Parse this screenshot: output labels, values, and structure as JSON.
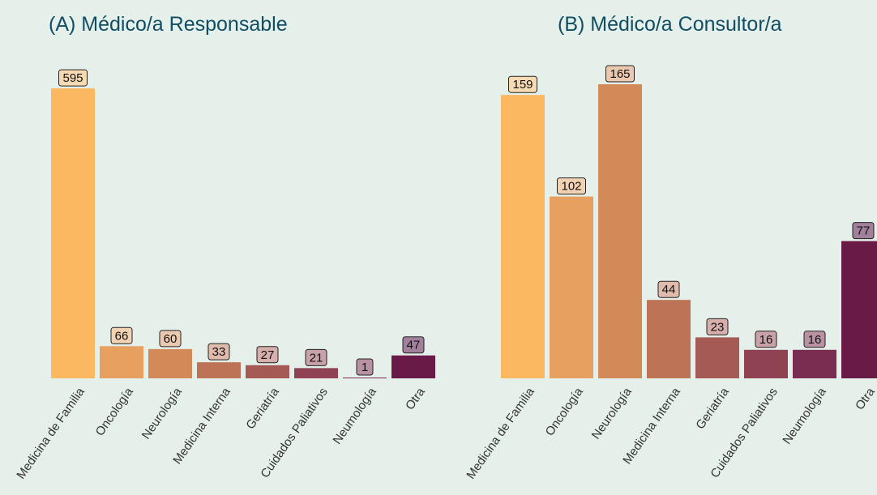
{
  "chart_data": [
    {
      "type": "bar",
      "title": "(A) Médico/a Responsable",
      "categories": [
        "Medicina de Familia",
        "Oncología",
        "Neurología",
        "Medicina Interna",
        "Geriatría",
        "Cuidados Paliativos",
        "Neumología",
        "Otra"
      ],
      "values": [
        595,
        66,
        60,
        33,
        27,
        21,
        1,
        47
      ],
      "ylim": [
        0,
        640
      ],
      "grid": false,
      "data_labels": true
    },
    {
      "type": "bar",
      "title": "(B) Médico/a Consultor/a",
      "categories": [
        "Medicina de Familia",
        "Oncología",
        "Neurología",
        "Medicina Interna",
        "Geriatría",
        "Cuidados Paliativos",
        "Neumología",
        "Otra"
      ],
      "values": [
        159,
        102,
        165,
        44,
        23,
        16,
        16,
        77
      ],
      "ylim": [
        0,
        175
      ],
      "grid": false,
      "data_labels": true
    }
  ],
  "colors": {
    "background": "#e6f0ea",
    "title": "#114d64",
    "bars": [
      "#fbb860",
      "#e7a060",
      "#d28a58",
      "#bd7356",
      "#a55a55",
      "#8f4352",
      "#7a2d50",
      "#6a1a47"
    ],
    "label_fills": [
      "#f7dab2",
      "#f2d2b3",
      "#ebc8b0",
      "#e0bbac",
      "#d6afac",
      "#c9a1a8",
      "#b892a3",
      "#a1809b"
    ]
  }
}
